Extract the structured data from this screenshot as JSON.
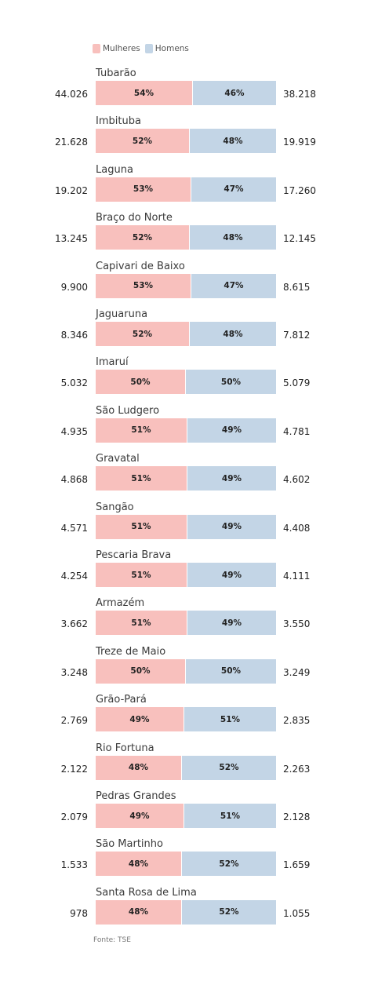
{
  "legend": {
    "women_label": "Mulheres",
    "men_label": "Homens"
  },
  "colors": {
    "women": "#f8c0bd",
    "men": "#c3d5e6"
  },
  "footer": "Fonte: TSE",
  "chart_data": {
    "type": "bar",
    "stacked": true,
    "orientation": "horizontal",
    "percent": true,
    "categories": [
      "Tubarão",
      "Imbituba",
      "Laguna",
      "Braço do Norte",
      "Capivari de Baixo",
      "Jaguaruna",
      "Imaruí",
      "São Ludgero",
      "Gravatal",
      "Sangão",
      "Pescaria Brava",
      "Armazém",
      "Treze de Maio",
      "Grão-Pará",
      "Rio Fortuna",
      "Pedras Grandes",
      "São Martinho",
      "Santa Rosa de Lima"
    ],
    "series": [
      {
        "name": "Mulheres",
        "counts": [
          "44.026",
          "21.628",
          "19.202",
          "13.245",
          "9.900",
          "8.346",
          "5.032",
          "4.935",
          "4.868",
          "4.571",
          "4.254",
          "3.662",
          "3.248",
          "2.769",
          "2.122",
          "2.079",
          "1.533",
          "978"
        ],
        "values": [
          54,
          52,
          53,
          52,
          53,
          52,
          50,
          51,
          51,
          51,
          51,
          51,
          50,
          49,
          48,
          49,
          48,
          48
        ]
      },
      {
        "name": "Homens",
        "counts": [
          "38.218",
          "19.919",
          "17.260",
          "12.145",
          "8.615",
          "7.812",
          "5.079",
          "4.781",
          "4.602",
          "4.408",
          "4.111",
          "3.550",
          "3.249",
          "2.835",
          "2.263",
          "2.128",
          "1.659",
          "1.055"
        ],
        "values": [
          46,
          48,
          47,
          48,
          47,
          48,
          50,
          49,
          49,
          49,
          49,
          49,
          50,
          51,
          52,
          51,
          52,
          52
        ]
      }
    ]
  }
}
